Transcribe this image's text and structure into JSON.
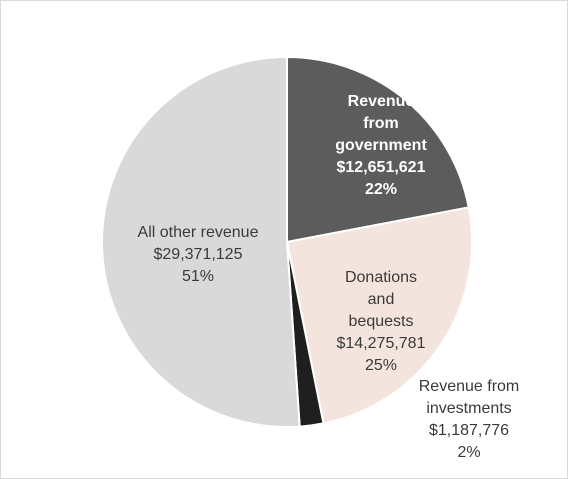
{
  "chart_data": {
    "type": "pie",
    "title": "",
    "slices": [
      {
        "label_lines": [
          "Revenue",
          "from",
          "government"
        ],
        "value": 12651621,
        "value_label": "$12,651,621",
        "percent_label": "22%",
        "color": "#5c5c5c",
        "text_color": "#ffffff"
      },
      {
        "label_lines": [
          "Donations",
          "and",
          "bequests"
        ],
        "value": 14275781,
        "value_label": "$14,275,781",
        "percent_label": "25%",
        "color": "#f4e4de",
        "text_color": "#3a3a3a"
      },
      {
        "label_lines": [
          "Revenue from",
          "investments"
        ],
        "value": 1187776,
        "value_label": "$1,187,776",
        "percent_label": "2%",
        "color": "#1f1f1f",
        "text_color": "#3a3a3a"
      },
      {
        "label_lines": [
          "All other revenue"
        ],
        "value": 29371125,
        "value_label": "$29,371,125",
        "percent_label": "51%",
        "color": "#d9d9d9",
        "text_color": "#3a3a3a"
      }
    ]
  }
}
